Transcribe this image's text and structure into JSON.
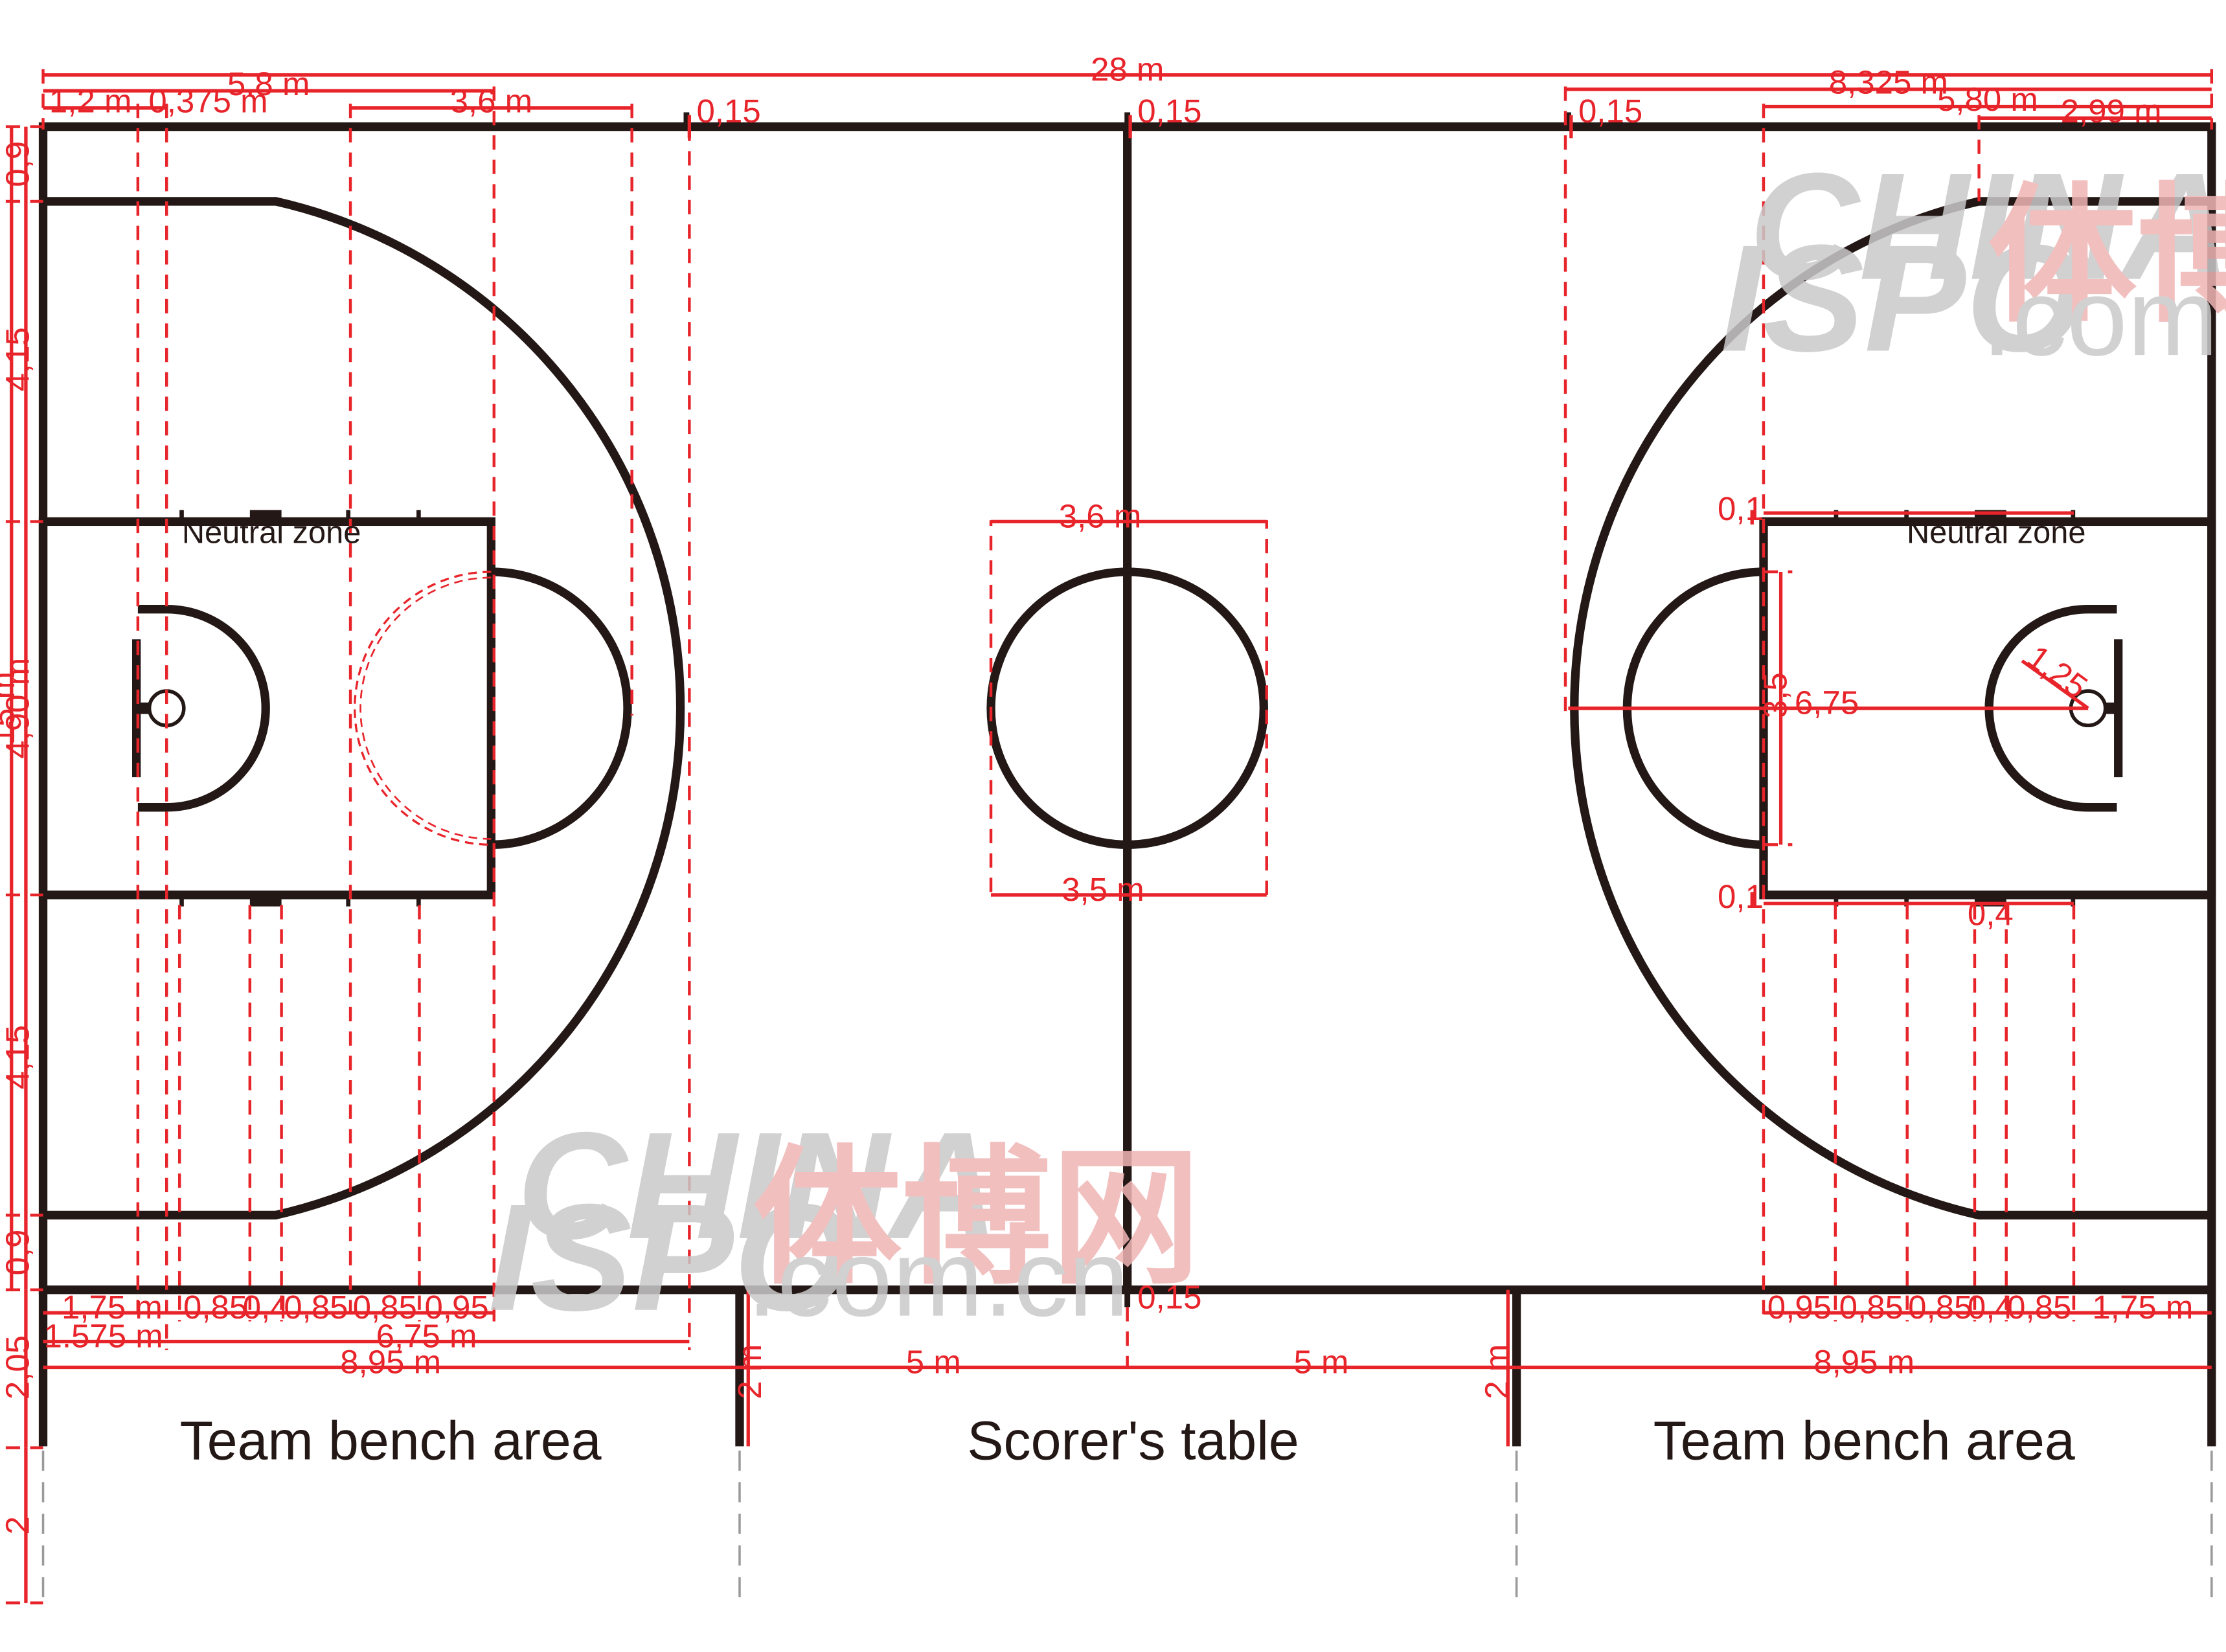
{
  "labels": {
    "team_bench_left": "Team bench area",
    "scorers_table": "Scorer's table",
    "team_bench_right": "Team bench area",
    "neutral_zone_left": "Neutral zone",
    "neutral_zone_right": "Neutral zone"
  },
  "dimensions": {
    "total_length": "28 m",
    "left_5_8": "5.8 m",
    "left_1_2": "1,2 m",
    "left_0_375": "0,375 m",
    "left_3_6": "3,6 m",
    "top_015_a": "0,15",
    "top_015_b": "0,15",
    "top_015_c": "0,15",
    "right_8_325": "8,325 m",
    "right_5_80": "5,80 m",
    "right_2_99": "2,99 m",
    "center_3_6": "3,6 m",
    "center_3_5": "3,5 m",
    "right_0_1_top": "0,1",
    "right_0_1_bottom": "0,1",
    "right_0_4": "0,4",
    "right_3_5": "3,5",
    "right_6_75": "6,75",
    "right_1_25": "1,25",
    "left_v_0_9_top": "0,9",
    "left_v_4_15_top": "4,15",
    "left_v_15": "15 m",
    "left_v_4_90": "4,90 m",
    "left_v_4_15_bottom": "4,15",
    "left_v_0_9_bottom": "0,9",
    "left_v_2_05": "2,05",
    "left_v_2": "2",
    "bottom_015": "0,15",
    "bl_1_75": "1,75 m",
    "bl_085_a": "0,85",
    "bl_0_4": "0,4",
    "bl_085_b": "0,85",
    "bl_085_c": "0,85",
    "bl_0_95": "0,95",
    "bl_1_575": "1.575 m",
    "bl_6_75": "6,75 m",
    "bl_8_95": "8,95 m",
    "bench_2_left": "2 m",
    "bench_2_right": "2 m",
    "bottom_5_left": "5 m",
    "bottom_5_right": "5 m",
    "br_0_95": "0,95",
    "br_085_a": "0,85",
    "br_085_b": "0,85",
    "br_0_4": "0,4",
    "br_085_c": "0,85",
    "br_1_75": "1,75 m",
    "br_8_95": "8,95 m"
  },
  "watermark": {
    "china": "CHINA",
    "ispo": "ISPO",
    "cn_name": "体博网",
    "domain": ".com.cn"
  },
  "colors": {
    "court_lines": "#231815",
    "dimension_lines": "#e8242b",
    "background": "#ffffff"
  }
}
